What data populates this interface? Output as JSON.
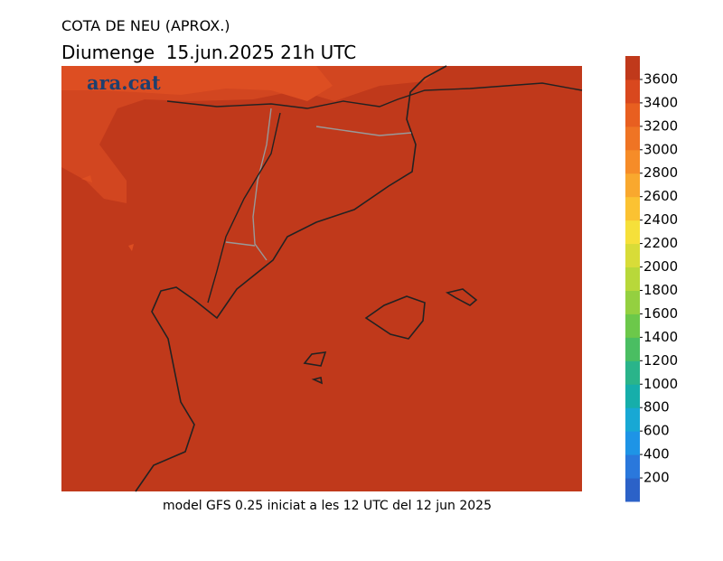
{
  "header": {
    "title": "COTA DE NEU (APROX.)",
    "subtitle": "Diumenge  15.jun.2025 21h UTC"
  },
  "logo": "ara.cat",
  "footer": "model GFS 0.25 iniciat a les 12 UTC del 12 jun 2025",
  "colorbar": {
    "lim": [
      0,
      3800
    ],
    "ticks": [
      200,
      400,
      600,
      800,
      1000,
      1200,
      1400,
      1600,
      1800,
      2000,
      2200,
      2400,
      2600,
      2800,
      3000,
      3200,
      3400,
      3600
    ],
    "colors": [
      "#2c62c8",
      "#2a78dc",
      "#1e94e6",
      "#18a8d4",
      "#16aeaa",
      "#2ab48a",
      "#4abe62",
      "#6cc84a",
      "#94d040",
      "#b8d83a",
      "#d8dc38",
      "#f6e03a",
      "#fbc232",
      "#f9a82e",
      "#f68c28",
      "#ef7424",
      "#e85f20",
      "#d9481e",
      "#c0391b"
    ]
  }
}
